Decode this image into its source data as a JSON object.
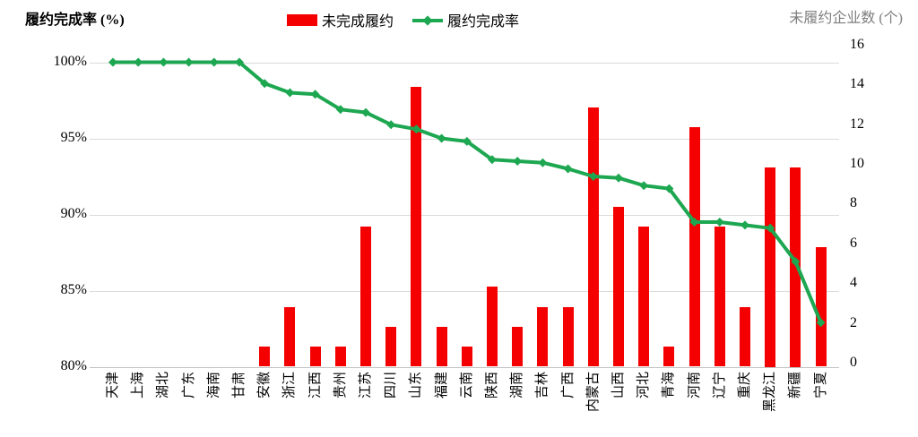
{
  "titles": {
    "left_axis_title": "履约完成率 (%)",
    "right_axis_title": "未履约企业数 (个)"
  },
  "legend": {
    "bar_label": "未完成履约",
    "line_label": "履约完成率"
  },
  "colors": {
    "bar_red": "#f40000",
    "line_green": "#1da751",
    "gridline": "#dbdbdb",
    "axis_line": "#c3c3c3",
    "right_title_gray": "#7f7f7f"
  },
  "chart_data": {
    "type": "bar",
    "subtype": "combo-bar-line-dual-axis",
    "title": "",
    "grid": "horizontal",
    "legend_position": "top",
    "categories": [
      "天津",
      "上海",
      "湖北",
      "广东",
      "海南",
      "甘肃",
      "安徽",
      "浙江",
      "江西",
      "贵州",
      "江苏",
      "四川",
      "山东",
      "福建",
      "云南",
      "陕西",
      "湖南",
      "吉林",
      "广西",
      "内蒙古",
      "山西",
      "河北",
      "青海",
      "河南",
      "辽宁",
      "重庆",
      "黑龙江",
      "新疆",
      "宁夏"
    ],
    "series": [
      {
        "name": "未完成履约",
        "type": "bar",
        "axis": "right",
        "values": [
          0,
          0,
          0,
          0,
          0,
          0,
          1,
          3,
          1,
          1,
          7,
          2,
          14,
          2,
          1,
          4,
          2,
          3,
          3,
          13,
          8,
          7,
          1,
          12,
          7,
          3,
          10,
          10,
          6
        ]
      },
      {
        "name": "履约完成率",
        "type": "line",
        "axis": "left",
        "marker": "diamond",
        "values": [
          100,
          100,
          100,
          100,
          100,
          100,
          98.6,
          98.0,
          97.9,
          96.9,
          96.7,
          95.9,
          95.6,
          95.0,
          94.8,
          93.6,
          93.5,
          93.4,
          93.0,
          92.5,
          92.4,
          91.9,
          91.7,
          89.5,
          89.5,
          89.3,
          89.1,
          86.9,
          82.9
        ]
      }
    ],
    "left_axis": {
      "label": "履约完成率 (%)",
      "min": 80,
      "max": 100,
      "tick_labels": [
        "100%",
        "95%",
        "90%",
        "85%",
        "80%"
      ],
      "tick_values": [
        100,
        95,
        90,
        85,
        80
      ]
    },
    "right_axis": {
      "label": "未履约企业数 (个)",
      "min": 0,
      "max": 16,
      "tick_labels": [
        "16",
        "14",
        "12",
        "10",
        "8",
        "6",
        "4",
        "2",
        "0"
      ],
      "tick_values": [
        16,
        14,
        12,
        10,
        8,
        6,
        4,
        2,
        0
      ]
    }
  }
}
